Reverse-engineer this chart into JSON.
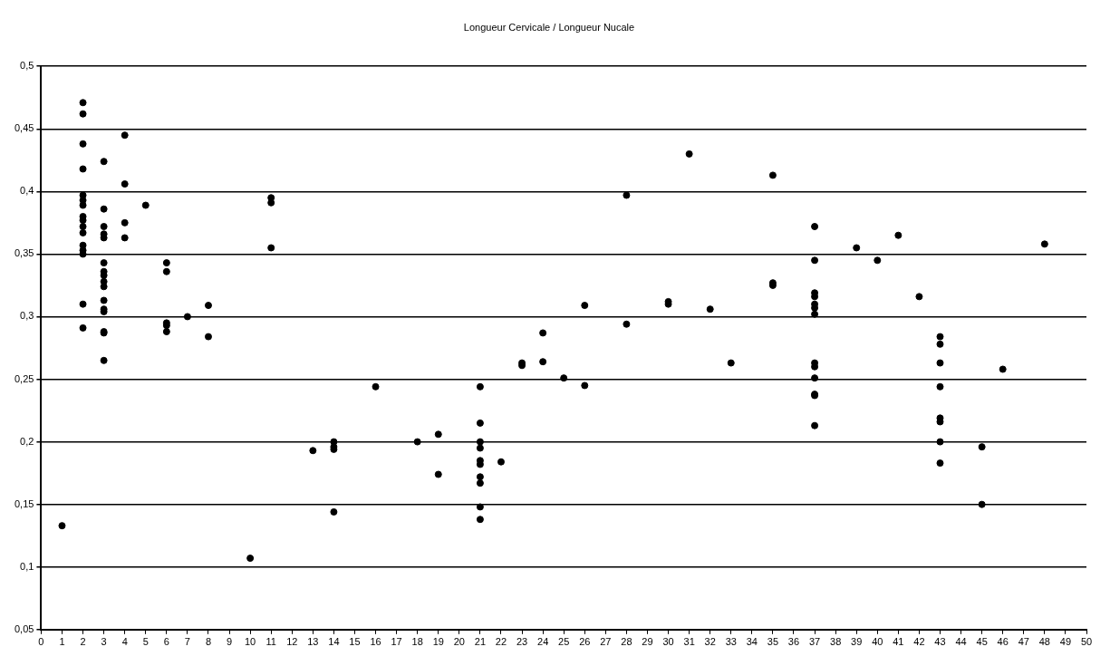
{
  "chart_data": {
    "type": "scatter",
    "title": "Longueur Cervicale / Longueur Nucale",
    "x": [
      1,
      2,
      2,
      2,
      2,
      2,
      2,
      2,
      2,
      2,
      2,
      2,
      2,
      2,
      2,
      2,
      2,
      3,
      3,
      3,
      3,
      3,
      3,
      3,
      3,
      3,
      3,
      3,
      3,
      3,
      3,
      3,
      3,
      4,
      4,
      4,
      4,
      5,
      6,
      6,
      6,
      6,
      6,
      7,
      8,
      8,
      10,
      11,
      11,
      11,
      13,
      14,
      14,
      14,
      14,
      16,
      18,
      19,
      19,
      21,
      21,
      21,
      21,
      21,
      21,
      21,
      21,
      21,
      21,
      22,
      23,
      23,
      24,
      24,
      25,
      26,
      26,
      28,
      28,
      30,
      30,
      31,
      32,
      33,
      35,
      35,
      35,
      37,
      37,
      37,
      37,
      37,
      37,
      37,
      37,
      37,
      37,
      37,
      37,
      37,
      39,
      40,
      41,
      42,
      43,
      43,
      43,
      43,
      43,
      43,
      43,
      43,
      45,
      45,
      46,
      48
    ],
    "values": [
      0.133,
      0.471,
      0.462,
      0.438,
      0.418,
      0.397,
      0.393,
      0.389,
      0.38,
      0.377,
      0.372,
      0.367,
      0.357,
      0.353,
      0.35,
      0.31,
      0.291,
      0.424,
      0.386,
      0.372,
      0.366,
      0.363,
      0.343,
      0.336,
      0.333,
      0.328,
      0.324,
      0.313,
      0.306,
      0.304,
      0.288,
      0.287,
      0.265,
      0.445,
      0.406,
      0.375,
      0.363,
      0.389,
      0.343,
      0.336,
      0.295,
      0.293,
      0.288,
      0.3,
      0.309,
      0.284,
      0.107,
      0.395,
      0.391,
      0.355,
      0.193,
      0.2,
      0.196,
      0.194,
      0.144,
      0.244,
      0.2,
      0.206,
      0.174,
      0.244,
      0.215,
      0.2,
      0.195,
      0.185,
      0.182,
      0.172,
      0.167,
      0.148,
      0.138,
      0.184,
      0.263,
      0.261,
      0.287,
      0.264,
      0.251,
      0.309,
      0.245,
      0.397,
      0.294,
      0.312,
      0.31,
      0.43,
      0.306,
      0.263,
      0.413,
      0.327,
      0.325,
      0.372,
      0.345,
      0.319,
      0.316,
      0.31,
      0.307,
      0.302,
      0.263,
      0.26,
      0.251,
      0.238,
      0.237,
      0.213,
      0.355,
      0.345,
      0.365,
      0.316,
      0.284,
      0.278,
      0.263,
      0.244,
      0.219,
      0.216,
      0.2,
      0.183,
      0.196,
      0.15,
      0.258,
      0.358
    ],
    "color": "#000000",
    "marker": "circle",
    "grid": "y",
    "legend": false,
    "xlim": [
      0,
      50
    ],
    "xticks": [
      0,
      1,
      2,
      3,
      4,
      5,
      6,
      7,
      8,
      9,
      10,
      11,
      12,
      13,
      14,
      15,
      16,
      17,
      18,
      19,
      20,
      21,
      22,
      23,
      24,
      25,
      26,
      27,
      28,
      29,
      30,
      31,
      32,
      33,
      34,
      35,
      36,
      37,
      38,
      39,
      40,
      41,
      42,
      43,
      44,
      45,
      46,
      47,
      48,
      49,
      50
    ],
    "ylim": [
      0.05,
      0.5
    ],
    "yticks": [
      {
        "value": 0.05,
        "label": "0,05"
      },
      {
        "value": 0.1,
        "label": "0,1"
      },
      {
        "value": 0.15,
        "label": "0,15"
      },
      {
        "value": 0.2,
        "label": "0,2"
      },
      {
        "value": 0.25,
        "label": "0,25"
      },
      {
        "value": 0.3,
        "label": "0,3"
      },
      {
        "value": 0.35,
        "label": "0,35"
      },
      {
        "value": 0.4,
        "label": "0,4"
      },
      {
        "value": 0.45,
        "label": "0,45"
      },
      {
        "value": 0.5,
        "label": "0,5"
      }
    ]
  }
}
